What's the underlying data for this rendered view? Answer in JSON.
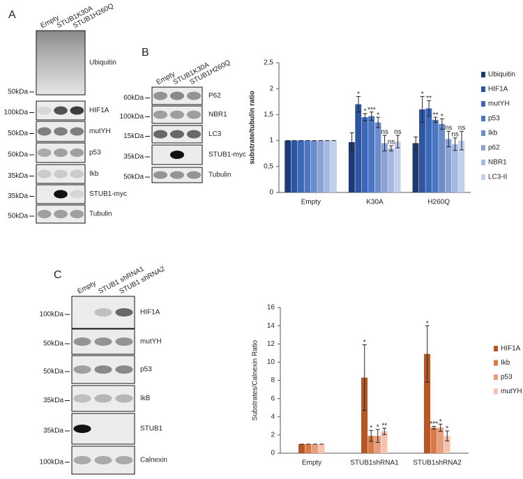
{
  "panels": [
    {
      "letter": "A",
      "lanes": [
        "Empty",
        "STUB1K30A",
        "STUB1H260Q"
      ],
      "rows": [
        {
          "label": "Ubiquitin",
          "marker": "50kDa"
        },
        {
          "label": "HIF1A",
          "marker": "100kDa"
        },
        {
          "label": "mutYH",
          "marker": "50kDa"
        },
        {
          "label": "p53",
          "marker": "50kDa"
        },
        {
          "label": "Ikb",
          "marker": "35kDa"
        },
        {
          "label": "STUB1-myc",
          "marker": "35kDa"
        },
        {
          "label": "Tubulin",
          "marker": "50kDa"
        }
      ]
    },
    {
      "letter": "B",
      "lanes": [
        "Empty",
        "STUB1K30A",
        "STUB1H260Q"
      ],
      "rows": [
        {
          "label": "P62",
          "marker": "60kDa"
        },
        {
          "label": "NBR1",
          "marker": "100kDa"
        },
        {
          "label": "LC3",
          "marker": "15kDa"
        },
        {
          "label": "STUB1-myc",
          "marker": "35kDa"
        },
        {
          "label": "Tubulin",
          "marker": "50kDa"
        }
      ]
    },
    {
      "letter": "C",
      "lanes": [
        "Empty",
        "STUB1 shRNA1",
        "STUB1 shRNA2"
      ],
      "rows": [
        {
          "label": "HIF1A",
          "marker": "100kDa"
        },
        {
          "label": "mutYH",
          "marker": "50kDa"
        },
        {
          "label": "p53",
          "marker": "50kDa"
        },
        {
          "label": "IkB",
          "marker": "35kDa"
        },
        {
          "label": "STUB1",
          "marker": "35kDa"
        },
        {
          "label": "Calnexin",
          "marker": "100kDa"
        }
      ]
    }
  ],
  "chart_data": [
    {
      "type": "bar",
      "y_label": "substrate/tubulin ratio",
      "categories": [
        "Empty",
        "K30A",
        "H260Q"
      ],
      "ylim": [
        0,
        2.5
      ],
      "yticks": [
        0,
        {
          "value": 0.5,
          "label": "0,5"
        },
        1,
        {
          "value": 1.5,
          "label": "1,5"
        },
        2,
        {
          "value": 2.5,
          "label": "2,5"
        }
      ],
      "series": [
        {
          "name": "Ubiquitin",
          "color": "#1d3a73",
          "values": [
            1,
            0.97,
            0.95
          ],
          "errors": [
            0,
            0.18,
            0.12
          ],
          "annotations": [
            null,
            null,
            null
          ]
        },
        {
          "name": "HIF1A",
          "color": "#2c56a3",
          "values": [
            1,
            1.7,
            1.6
          ],
          "errors": [
            0,
            0.15,
            0.25
          ],
          "annotations": [
            null,
            "*",
            "*"
          ]
        },
        {
          "name": "mutYH",
          "color": "#3b68b8",
          "values": [
            1,
            1.45,
            1.62
          ],
          "errors": [
            0,
            0.07,
            0.15
          ],
          "annotations": [
            null,
            "*",
            "**"
          ]
        },
        {
          "name": "p53",
          "color": "#4c76c0",
          "values": [
            1,
            1.47,
            1.4
          ],
          "errors": [
            0,
            0.08,
            0.05
          ],
          "annotations": [
            null,
            "***",
            "**"
          ]
        },
        {
          "name": "Ikb",
          "color": "#6c8bc9",
          "values": [
            1,
            1.35,
            1.32
          ],
          "errors": [
            0,
            0.1,
            0.1
          ],
          "annotations": [
            null,
            "*",
            "*"
          ]
        },
        {
          "name": "p62",
          "color": "#8aa2d5",
          "values": [
            1,
            0.95,
            1.03
          ],
          "errors": [
            0,
            0.15,
            0.15
          ],
          "annotations": [
            null,
            "ns",
            "ns"
          ]
        },
        {
          "name": "NBR1",
          "color": "#a6b9e1",
          "values": [
            1,
            0.85,
            0.93
          ],
          "errors": [
            0,
            0.05,
            0.12
          ],
          "annotations": [
            null,
            "ns",
            "ns"
          ]
        },
        {
          "name": "LC3-II",
          "color": "#c3d0ec",
          "values": [
            1,
            0.98,
            1.0
          ],
          "errors": [
            0,
            0.12,
            0.18
          ],
          "annotations": [
            null,
            "ns",
            "ns"
          ]
        }
      ]
    },
    {
      "type": "bar",
      "y_label": "Substrates/Calnexin Ratio",
      "categories": [
        "Empty",
        "STUB1shRNA1",
        "STUB1shRNA2"
      ],
      "ylim": [
        0,
        16
      ],
      "yticks": [
        0,
        2,
        4,
        6,
        8,
        10,
        12,
        14,
        16
      ],
      "series": [
        {
          "name": "HIF1A",
          "color": "#b4582a",
          "values": [
            1,
            8.3,
            10.9
          ],
          "errors": [
            0,
            3.6,
            3.1
          ],
          "annotations": [
            null,
            "*",
            "*"
          ]
        },
        {
          "name": "Ikb",
          "color": "#d77a45",
          "values": [
            1,
            1.9,
            2.8
          ],
          "errors": [
            0,
            0.6,
            0.15
          ],
          "annotations": [
            null,
            "*",
            "***"
          ]
        },
        {
          "name": "p53",
          "color": "#eb9d7a",
          "values": [
            1,
            1.9,
            2.8
          ],
          "errors": [
            0,
            0.7,
            0.4
          ],
          "annotations": [
            null,
            "*",
            "*"
          ]
        },
        {
          "name": "mutYH",
          "color": "#f4c3ae",
          "values": [
            1,
            2.4,
            1.9
          ],
          "errors": [
            0,
            0.35,
            0.55
          ],
          "annotations": [
            null,
            "**",
            "*"
          ]
        }
      ]
    }
  ]
}
